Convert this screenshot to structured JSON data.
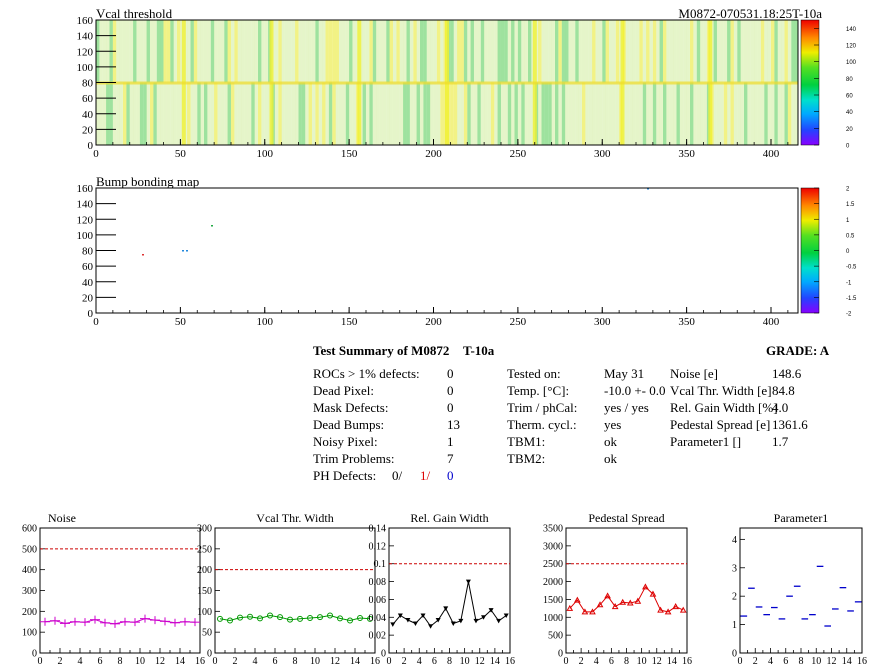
{
  "colors": {
    "map_green": "#22cc22",
    "map_yellow": "#e8e820",
    "red_ref": "#cc0000",
    "magenta": "#cc00cc",
    "green": "#009900",
    "black": "#000000",
    "red": "#dd0000",
    "blue": "#0000cc",
    "ph_red": "#dd0000",
    "ph_blue": "#0000cc"
  },
  "maps": [
    {
      "title": "Vcal threshold",
      "corner_label": "M0872-070531.18:25T-10a",
      "x_ticks": [
        "0",
        "50",
        "100",
        "150",
        "200",
        "250",
        "300",
        "350",
        "400"
      ],
      "x_tick_values": [
        0,
        50,
        100,
        150,
        200,
        250,
        300,
        350,
        400
      ],
      "y_ticks": [
        "0",
        "20",
        "40",
        "60",
        "80",
        "100",
        "120",
        "140",
        "160"
      ],
      "y_tick_values": [
        0,
        20,
        40,
        60,
        80,
        100,
        120,
        140,
        160
      ],
      "xlim": [
        0,
        416
      ],
      "ylim": [
        0,
        160
      ],
      "z_ticks": [
        "0",
        "20",
        "40",
        "60",
        "80",
        "100",
        "120",
        "140"
      ],
      "z_tick_values": [
        0,
        20,
        40,
        60,
        80,
        100,
        120,
        140
      ],
      "zlim": [
        0,
        150
      ]
    },
    {
      "title": "Bump bonding map",
      "x_ticks": [
        "0",
        "50",
        "100",
        "150",
        "200",
        "250",
        "300",
        "350",
        "400"
      ],
      "x_tick_values": [
        0,
        50,
        100,
        150,
        200,
        250,
        300,
        350,
        400
      ],
      "y_ticks": [
        "0",
        "20",
        "40",
        "60",
        "80",
        "100",
        "120",
        "140",
        "160"
      ],
      "y_tick_values": [
        0,
        20,
        40,
        60,
        80,
        100,
        120,
        140,
        160
      ],
      "xlim": [
        0,
        416
      ],
      "ylim": [
        0,
        160
      ],
      "z_ticks": [
        "-2",
        "-1.5",
        "-1",
        "-0.5",
        "0",
        "0.5",
        "1",
        "1.5",
        "2"
      ],
      "z_tick_values": [
        -2,
        -1.5,
        -1,
        -0.5,
        0,
        0.5,
        1,
        1.5,
        2
      ],
      "zlim": [
        -2,
        2
      ]
    }
  ],
  "summary": {
    "title": "Test Summary of M0872",
    "temp_tag": "T-10a",
    "grade_label": "GRADE:  A",
    "left": [
      {
        "label": "ROCs > 1% defects:",
        "value": "0"
      },
      {
        "label": "Dead Pixel:",
        "value": "0"
      },
      {
        "label": "Mask Defects:",
        "value": "0"
      },
      {
        "label": "Dead Bumps:",
        "value": "13"
      },
      {
        "label": "Noisy Pixel:",
        "value": "1"
      },
      {
        "label": "Trim Problems:",
        "value": "7"
      }
    ],
    "ph_label": "PH Defects:",
    "ph_values": [
      "0/",
      "1/",
      "0"
    ],
    "middle": [
      {
        "label": "Tested on:",
        "value": "May 31"
      },
      {
        "label": "Temp. [°C]:",
        "value": "-10.0 +- 0.0"
      },
      {
        "label": "Trim / phCal:",
        "value": "yes / yes"
      },
      {
        "label": "Therm. cycl.:",
        "value": "yes"
      },
      {
        "label": "TBM1:",
        "value": "ok"
      },
      {
        "label": "TBM2:",
        "value": "ok"
      }
    ],
    "right": [
      {
        "label": "Noise [e]",
        "value": "148.6"
      },
      {
        "label": "Vcal Thr. Width [e]",
        "value": "84.8"
      },
      {
        "label": "Rel. Gain Width [%]",
        "value": "4.0"
      },
      {
        "label": "Pedestal Spread [e]",
        "value": "1361.6"
      },
      {
        "label": "Parameter1 []",
        "value": "1.7"
      }
    ]
  },
  "chart_data": [
    {
      "type": "line",
      "title": "Noise",
      "x": [
        0.5,
        1.5,
        2.5,
        3.5,
        4.5,
        5.5,
        6.5,
        7.5,
        8.5,
        9.5,
        10.5,
        11.5,
        12.5,
        13.5,
        14.5,
        15.5
      ],
      "series": [
        {
          "values": [
            150,
            155,
            142,
            150,
            148,
            160,
            145,
            140,
            150,
            148,
            165,
            158,
            152,
            145,
            150,
            148
          ]
        }
      ],
      "reference_line": 500,
      "xlim": [
        0,
        16
      ],
      "ylim": [
        0,
        600
      ],
      "x_ticks": [
        "0",
        "2",
        "4",
        "6",
        "8",
        "10",
        "12",
        "14",
        "16"
      ],
      "y_ticks": [
        "0",
        "100",
        "200",
        "300",
        "400",
        "500",
        "600"
      ],
      "y_tick_values": [
        0,
        100,
        200,
        300,
        400,
        500,
        600
      ],
      "marker": "plus",
      "color_key": "magenta",
      "connect": true
    },
    {
      "type": "line",
      "title": "Vcal Thr. Width",
      "x": [
        0.5,
        1.5,
        2.5,
        3.5,
        4.5,
        5.5,
        6.5,
        7.5,
        8.5,
        9.5,
        10.5,
        11.5,
        12.5,
        13.5,
        14.5,
        15.5
      ],
      "series": [
        {
          "values": [
            82,
            78,
            85,
            87,
            83,
            90,
            86,
            80,
            82,
            84,
            86,
            90,
            83,
            78,
            84,
            82
          ]
        }
      ],
      "reference_line": 200,
      "xlim": [
        0,
        16
      ],
      "ylim": [
        0,
        300
      ],
      "x_ticks": [
        "0",
        "2",
        "4",
        "6",
        "8",
        "10",
        "12",
        "14",
        "16"
      ],
      "y_ticks": [
        "0",
        "50",
        "100",
        "150",
        "200",
        "250",
        "300"
      ],
      "y_tick_values": [
        0,
        50,
        100,
        150,
        200,
        250,
        300
      ],
      "marker": "circle",
      "color_key": "green",
      "connect": true
    },
    {
      "type": "line",
      "title": "Rel. Gain Width",
      "x": [
        0.5,
        1.5,
        2.5,
        3.5,
        4.5,
        5.5,
        6.5,
        7.5,
        8.5,
        9.5,
        10.5,
        11.5,
        12.5,
        13.5,
        14.5,
        15.5
      ],
      "series": [
        {
          "values": [
            0.032,
            0.042,
            0.037,
            0.033,
            0.042,
            0.03,
            0.037,
            0.05,
            0.033,
            0.036,
            0.08,
            0.036,
            0.04,
            0.048,
            0.036,
            0.042
          ]
        }
      ],
      "reference_line": 0.1,
      "xlim": [
        0,
        16
      ],
      "ylim": [
        0,
        0.14
      ],
      "x_ticks": [
        "0",
        "2",
        "4",
        "6",
        "8",
        "10",
        "12",
        "14",
        "16"
      ],
      "y_ticks": [
        "0",
        "0.02",
        "0.04",
        "0.06",
        "0.08",
        "0.1",
        "0.12",
        "0.14"
      ],
      "y_tick_values": [
        0,
        0.02,
        0.04,
        0.06,
        0.08,
        0.1,
        0.12,
        0.14
      ],
      "marker": "triangle-down",
      "color_key": "black",
      "connect": true
    },
    {
      "type": "line",
      "title": "Pedestal Spread",
      "x": [
        0.5,
        1.5,
        2.5,
        3.5,
        4.5,
        5.5,
        6.5,
        7.5,
        8.5,
        9.5,
        10.5,
        11.5,
        12.5,
        13.5,
        14.5,
        15.5
      ],
      "series": [
        {
          "values": [
            1250,
            1480,
            1150,
            1150,
            1350,
            1600,
            1300,
            1420,
            1400,
            1450,
            1850,
            1650,
            1200,
            1150,
            1300,
            1200
          ]
        }
      ],
      "reference_line": 2500,
      "xlim": [
        0,
        16
      ],
      "ylim": [
        0,
        3500
      ],
      "x_ticks": [
        "0",
        "2",
        "4",
        "6",
        "8",
        "10",
        "12",
        "14",
        "16"
      ],
      "y_ticks": [
        "0",
        "500",
        "1000",
        "1500",
        "2000",
        "2500",
        "3000",
        "3500"
      ],
      "y_tick_values": [
        0,
        500,
        1000,
        1500,
        2000,
        2500,
        3000,
        3500
      ],
      "marker": "triangle-up",
      "color_key": "red",
      "connect": true
    },
    {
      "type": "scatter",
      "title": "Parameter1",
      "x": [
        0.5,
        1.5,
        2.5,
        3.5,
        4.5,
        5.5,
        6.5,
        7.5,
        8.5,
        9.5,
        10.5,
        11.5,
        12.5,
        13.5,
        14.5,
        15.5
      ],
      "series": [
        {
          "values": [
            1.3,
            2.28,
            1.62,
            1.35,
            1.6,
            1.2,
            2.0,
            2.35,
            1.2,
            1.35,
            3.05,
            0.95,
            1.55,
            2.3,
            1.48,
            1.8
          ]
        }
      ],
      "xlim": [
        0,
        16
      ],
      "ylim": [
        0,
        4.4
      ],
      "x_ticks": [
        "0",
        "2",
        "4",
        "6",
        "8",
        "10",
        "12",
        "14",
        "16"
      ],
      "y_ticks": [
        "0",
        "1",
        "2",
        "3",
        "4"
      ],
      "y_tick_values": [
        0,
        1,
        2,
        3,
        4
      ],
      "marker": "dash",
      "color_key": "blue",
      "connect": false
    }
  ]
}
